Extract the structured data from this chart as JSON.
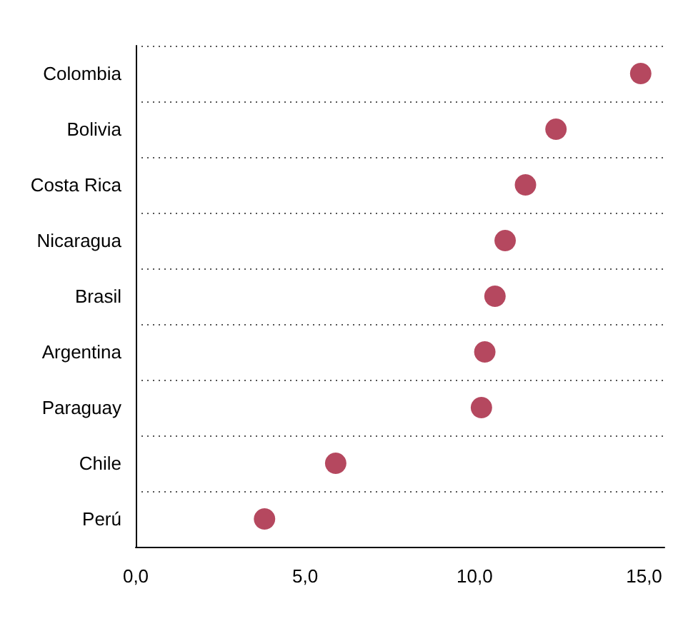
{
  "chart_data": {
    "type": "scatter",
    "orientation": "horizontal",
    "categories": [
      "Colombia",
      "Bolivia",
      "Costa Rica",
      "Nicaragua",
      "Brasil",
      "Argentina",
      "Paraguay",
      "Chile",
      "Perú"
    ],
    "values": [
      14.9,
      12.4,
      11.5,
      10.9,
      10.6,
      10.3,
      10.2,
      5.9,
      3.8
    ],
    "color": "#b5485f",
    "xlim": [
      0,
      15.6
    ],
    "xticks": [
      {
        "value": 0,
        "label": "0,0"
      },
      {
        "value": 5,
        "label": "5,0"
      },
      {
        "value": 10,
        "label": "10,0"
      },
      {
        "value": 15,
        "label": "15,0"
      }
    ],
    "grid": "y",
    "marker": "circle"
  }
}
